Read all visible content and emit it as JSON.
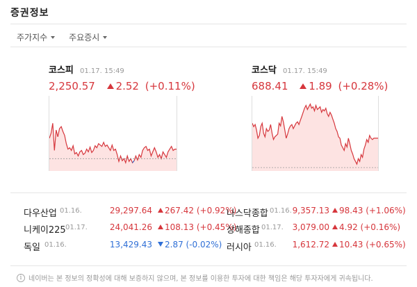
{
  "title": "증권정보",
  "tabs": [
    {
      "label": "주가지수"
    },
    {
      "label": "주요증시"
    }
  ],
  "indices": [
    {
      "name": "코스피",
      "time": "01.17. 15:49",
      "value": "2,250.57",
      "change": "2.52",
      "percent": "(+0.11%)",
      "direction": "up",
      "chart_data": {
        "type": "area",
        "series": [
          62,
          55,
          40,
          80,
          50,
          60,
          48,
          45,
          52,
          58,
          70,
          78,
          76,
          80,
          73,
          85,
          83,
          88,
          82,
          80,
          86,
          84,
          78,
          82,
          75,
          83,
          80,
          73,
          76,
          70,
          72,
          74,
          68,
          74,
          72,
          76,
          80,
          72,
          80,
          78,
          86,
          96,
          88,
          95,
          92,
          98,
          88,
          96,
          92,
          98,
          95,
          88,
          94,
          86,
          90,
          80,
          76,
          74,
          80,
          78,
          88,
          82,
          76,
          82,
          90,
          86,
          92,
          82,
          86,
          90,
          82,
          78,
          74,
          80,
          78,
          78
        ],
        "baseline": 92
      }
    },
    {
      "name": "코스닥",
      "time": "01.17. 15:49",
      "value": "688.41",
      "change": "1.89",
      "percent": "(+0.28%)",
      "direction": "up",
      "chart_data": {
        "type": "area",
        "series": [
          40,
          45,
          42,
          50,
          62,
          58,
          45,
          40,
          55,
          60,
          48,
          52,
          50,
          42,
          55,
          64,
          60,
          58,
          56,
          40,
          44,
          30,
          38,
          50,
          62,
          56,
          48,
          44,
          42,
          48,
          44,
          40,
          38,
          42,
          36,
          30,
          24,
          18,
          14,
          20,
          16,
          12,
          18,
          16,
          22,
          14,
          20,
          18,
          16,
          24,
          20,
          22,
          18,
          26,
          30,
          24,
          28,
          34,
          40,
          48,
          52,
          60,
          62,
          72,
          76,
          80,
          70,
          75,
          62,
          70,
          80,
          85,
          92,
          96,
          100,
          92,
          96,
          86,
          90,
          78,
          72,
          64,
          68,
          58,
          62,
          64,
          62,
          62,
          62,
          62
        ],
        "baseline": 105
      }
    }
  ],
  "markets_left": [
    {
      "name": "다우산업",
      "date": "01.16.",
      "price": "29,297.64",
      "change": "267.42",
      "percent": "(+0.92%)",
      "direction": "up"
    },
    {
      "name": "니케이225",
      "date": "01.17.",
      "price": "24,041.26",
      "change": "108.13",
      "percent": "(+0.45%)",
      "direction": "up"
    },
    {
      "name": "독일",
      "date": "01.16.",
      "price": "13,429.43",
      "change": "2.87",
      "percent": "(-0.02%)",
      "direction": "down"
    }
  ],
  "markets_right": [
    {
      "name": "나스닥종합",
      "date": "01.16.",
      "price": "9,357.13",
      "change": "98.43",
      "percent": "(+1.06%)",
      "direction": "up"
    },
    {
      "name": "상해종합",
      "date": "01.17.",
      "price": "3,079.00",
      "change": "4.92",
      "percent": "(+0.16%)",
      "direction": "up"
    },
    {
      "name": "러시아",
      "date": "01.16.",
      "price": "1,612.72",
      "change": "10.43",
      "percent": "(+0.65%)",
      "direction": "up"
    }
  ],
  "notice": "네이버는 본 정보의 정확성에 대해 보증하지 않으며, 본 정보를 이용한 투자에 대한 책임은 해당 투자자에게 귀속됩니다.",
  "colors": {
    "up": "#d6363c",
    "down": "#2f6fd6",
    "area_fill": "#fde3e2"
  }
}
